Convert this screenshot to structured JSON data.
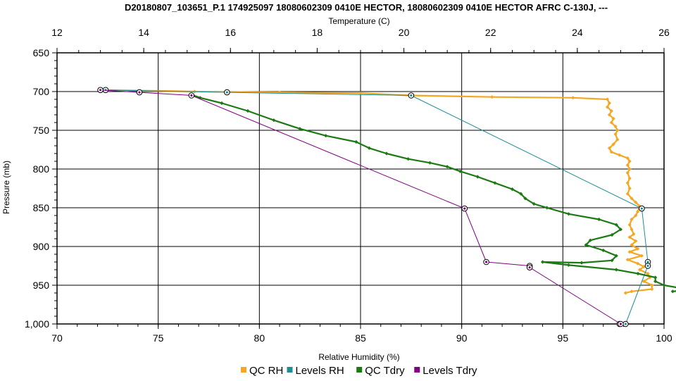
{
  "chart_data": {
    "type": "line",
    "title": "D20180807_103651_P.1 174925097 18080602309 0410E HECTOR, 18080602309 0410E HECTOR AFRC C-130J, ---",
    "xlabel": "Relative Humidity (%)",
    "x2label": "Temperature (C)",
    "ylabel": "Pressure (mb)",
    "xlim": [
      70,
      100
    ],
    "x2lim": [
      12,
      26
    ],
    "ylim": [
      650,
      1000
    ],
    "y_inverted": true,
    "grid": true,
    "x_ticks": [
      "70",
      "75",
      "80",
      "85",
      "90",
      "95",
      "100"
    ],
    "x2_ticks": [
      "12",
      "14",
      "16",
      "18",
      "20",
      "22",
      "24",
      "26"
    ],
    "y_ticks": [
      "650",
      "700",
      "750",
      "800",
      "850",
      "900",
      "950",
      "1,000"
    ],
    "legend_position": "bottom",
    "series": [
      {
        "name": "QC RH",
        "axis": "x",
        "color": "#f5a623",
        "marker": "diamond",
        "points": [
          [
            72.4,
            698
          ],
          [
            76.8,
            700
          ],
          [
            81.0,
            701
          ],
          [
            85.0,
            702
          ],
          [
            87.4,
            705
          ],
          [
            91.5,
            707
          ],
          [
            95.5,
            708
          ],
          [
            97.2,
            710
          ],
          [
            97.3,
            715
          ],
          [
            97.2,
            720
          ],
          [
            97.4,
            725
          ],
          [
            97.3,
            730
          ],
          [
            97.5,
            735
          ],
          [
            97.4,
            740
          ],
          [
            97.6,
            745
          ],
          [
            97.7,
            750
          ],
          [
            97.6,
            755
          ],
          [
            97.7,
            762
          ],
          [
            97.5,
            768
          ],
          [
            97.3,
            773
          ],
          [
            97.4,
            778
          ],
          [
            97.8,
            782
          ],
          [
            98.2,
            786
          ],
          [
            98.3,
            790
          ],
          [
            98.2,
            795
          ],
          [
            98.3,
            800
          ],
          [
            98.2,
            805
          ],
          [
            98.3,
            812
          ],
          [
            98.2,
            818
          ],
          [
            98.3,
            825
          ],
          [
            98.2,
            832
          ],
          [
            98.4,
            838
          ],
          [
            98.6,
            843
          ],
          [
            98.8,
            848
          ],
          [
            98.7,
            855
          ],
          [
            98.6,
            860
          ],
          [
            98.4,
            865
          ],
          [
            98.3,
            872
          ],
          [
            98.4,
            878
          ],
          [
            98.5,
            884
          ],
          [
            98.3,
            888
          ],
          [
            98.6,
            893
          ],
          [
            98.4,
            898
          ],
          [
            98.7,
            903
          ],
          [
            98.3,
            907
          ],
          [
            98.9,
            912
          ],
          [
            98.2,
            917
          ],
          [
            98.7,
            922
          ],
          [
            99.0,
            926
          ],
          [
            98.8,
            930
          ],
          [
            99.2,
            935
          ],
          [
            99.3,
            940
          ],
          [
            99.0,
            945
          ],
          [
            99.4,
            950
          ],
          [
            99.4,
            955
          ],
          [
            98.4,
            958
          ],
          [
            98.1,
            960
          ]
        ]
      },
      {
        "name": "Levels RH",
        "axis": "x",
        "color": "#1a8f94",
        "marker": "circle",
        "points": [
          [
            72.4,
            698
          ],
          [
            78.4,
            701
          ],
          [
            87.5,
            705
          ],
          [
            98.9,
            851
          ],
          [
            99.2,
            920
          ],
          [
            99.2,
            925
          ],
          [
            98.1,
            1000
          ],
          [
            97.8,
            1000
          ]
        ]
      },
      {
        "name": "QC Tdry",
        "axis": "x2",
        "color": "#1b7a12",
        "marker": "diamond",
        "points": [
          [
            15.1,
            704
          ],
          [
            15.3,
            708
          ],
          [
            15.8,
            715
          ],
          [
            16.4,
            725
          ],
          [
            17.0,
            737
          ],
          [
            17.6,
            748
          ],
          [
            18.2,
            757
          ],
          [
            18.9,
            765
          ],
          [
            19.2,
            773
          ],
          [
            19.6,
            780
          ],
          [
            20.1,
            787
          ],
          [
            20.6,
            792
          ],
          [
            21.0,
            797
          ],
          [
            21.3,
            803
          ],
          [
            21.7,
            810
          ],
          [
            22.1,
            818
          ],
          [
            22.5,
            826
          ],
          [
            22.7,
            832
          ],
          [
            22.8,
            838
          ],
          [
            23.0,
            845
          ],
          [
            23.3,
            850
          ],
          [
            23.8,
            858
          ],
          [
            24.5,
            865
          ],
          [
            24.9,
            872
          ],
          [
            25.0,
            878
          ],
          [
            24.8,
            885
          ],
          [
            24.3,
            892
          ],
          [
            24.2,
            898
          ],
          [
            24.6,
            905
          ],
          [
            24.9,
            912
          ],
          [
            24.8,
            918
          ],
          [
            24.1,
            921
          ],
          [
            23.2,
            920
          ],
          [
            23.8,
            924
          ],
          [
            24.9,
            930
          ],
          [
            25.4,
            935
          ],
          [
            25.8,
            940
          ],
          [
            25.8,
            945
          ],
          [
            26.0,
            950
          ],
          [
            26.3,
            953
          ],
          [
            26.4,
            957
          ],
          [
            26.2,
            958
          ]
        ]
      },
      {
        "name": "Levels Tdry",
        "axis": "x2",
        "color": "#800080",
        "marker": "circle",
        "points": [
          [
            13.0,
            698
          ],
          [
            13.9,
            701
          ],
          [
            15.1,
            705
          ],
          [
            21.4,
            851
          ],
          [
            21.9,
            920
          ],
          [
            22.9,
            925
          ],
          [
            22.9,
            927
          ],
          [
            25.0,
            1000
          ]
        ]
      }
    ]
  }
}
